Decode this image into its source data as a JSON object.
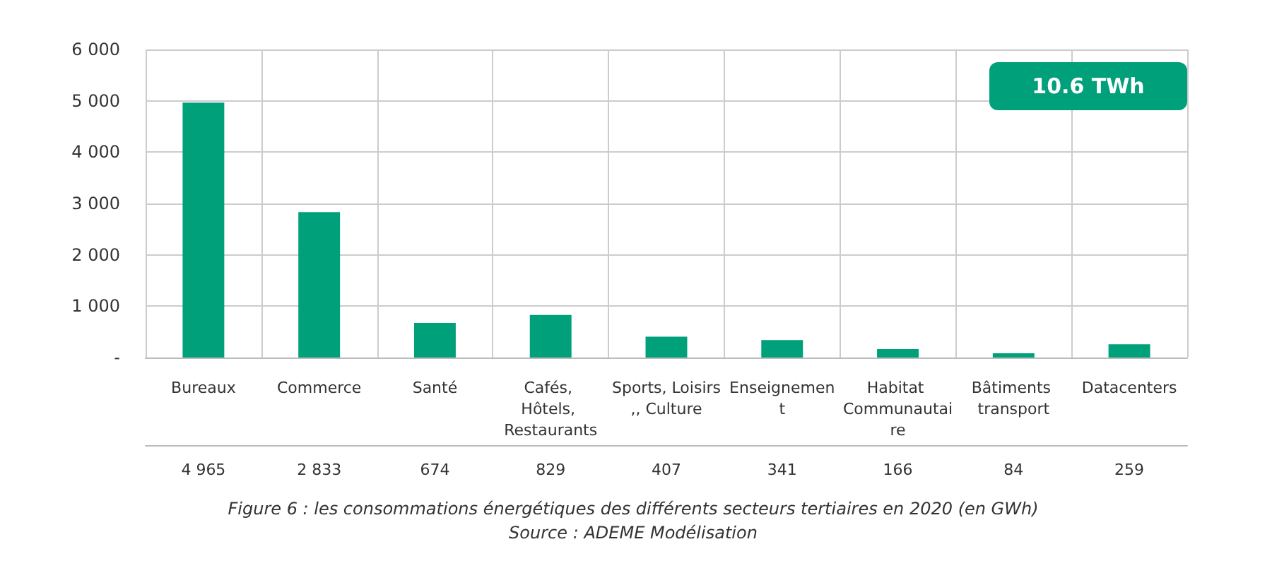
{
  "chart_data": {
    "type": "bar",
    "categories": [
      "Bureaux",
      "Commerce",
      "Santé",
      "Cafés, Hôtels, Restaurants",
      "Sports, Loisirs,, Culture",
      "Enseignement",
      "Habitat Communautaire",
      "Bâtiments transport",
      "Datacenters"
    ],
    "values": [
      4965,
      2833,
      674,
      829,
      407,
      341,
      166,
      84,
      259
    ],
    "value_labels": [
      "4 965",
      "2 833",
      "674",
      "829",
      "407",
      "341",
      "166",
      "84",
      "259"
    ],
    "color": "#00a07a",
    "ylim": [
      0,
      6000
    ],
    "yticks": [
      {
        "value": 0,
        "label": "-"
      },
      {
        "value": 1000,
        "label": "1 000"
      },
      {
        "value": 2000,
        "label": "2 000"
      },
      {
        "value": 3000,
        "label": "3 000"
      },
      {
        "value": 4000,
        "label": "4 000"
      },
      {
        "value": 5000,
        "label": "5 000"
      },
      {
        "value": 6000,
        "label": "6 000"
      }
    ],
    "grid": true,
    "annotations": [
      "10.6 TWh",
      "Figure 6 : les consommations énergétiques des différents secteurs tertiaires en 2020 (en GWh)",
      "Source : ADEME Modélisation"
    ]
  }
}
